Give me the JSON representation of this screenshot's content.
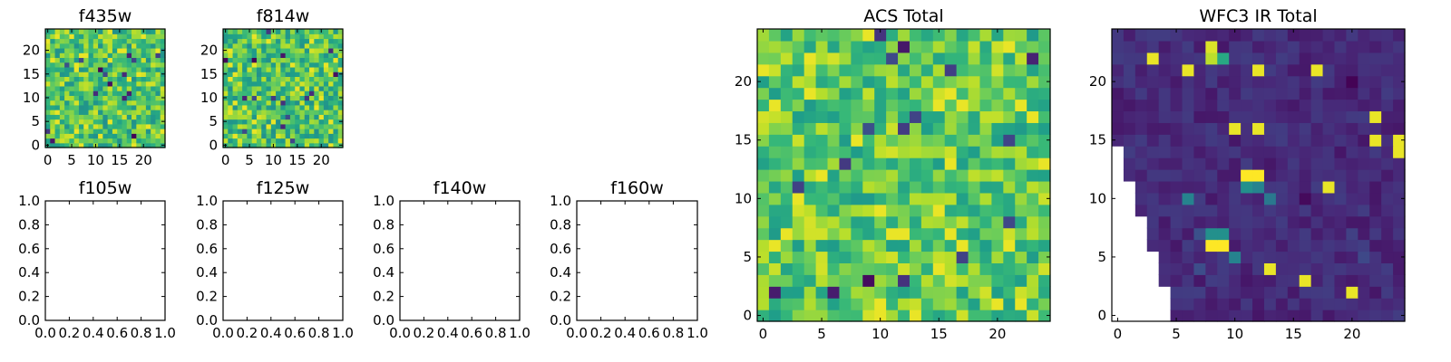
{
  "chart_data": [
    {
      "id": "f435w",
      "type": "heatmap",
      "title": "f435w",
      "grid_size": 25,
      "colormap": "viridis",
      "xlim": [
        -0.5,
        24.5
      ],
      "ylim": [
        -0.5,
        24.5
      ],
      "xticks": [
        0,
        5,
        10,
        15,
        20
      ],
      "yticks": [
        0,
        5,
        10,
        15,
        20
      ],
      "values": {
        "distribution": "noise",
        "mean": 0.72,
        "spread": 0.22,
        "seed": 11
      }
    },
    {
      "id": "f814w",
      "type": "heatmap",
      "title": "f814w",
      "grid_size": 25,
      "colormap": "viridis",
      "xlim": [
        -0.5,
        24.5
      ],
      "ylim": [
        -0.5,
        24.5
      ],
      "xticks": [
        0,
        5,
        10,
        15,
        20
      ],
      "yticks": [
        0,
        5,
        10,
        15,
        20
      ],
      "values": {
        "distribution": "noise",
        "mean": 0.72,
        "spread": 0.22,
        "seed": 23
      }
    },
    {
      "id": "f105w",
      "type": "heatmap",
      "title": "f105w",
      "empty": true,
      "xlim": [
        0,
        1
      ],
      "ylim": [
        0,
        1
      ],
      "xticks": [
        "0.0",
        "0.2",
        "0.4",
        "0.6",
        "0.8",
        "1.0"
      ],
      "yticks": [
        "0.0",
        "0.2",
        "0.4",
        "0.6",
        "0.8",
        "1.0"
      ]
    },
    {
      "id": "f125w",
      "type": "heatmap",
      "title": "f125w",
      "empty": true,
      "xlim": [
        0,
        1
      ],
      "ylim": [
        0,
        1
      ],
      "xticks": [
        "0.0",
        "0.2",
        "0.4",
        "0.6",
        "0.8",
        "1.0"
      ],
      "yticks": [
        "0.0",
        "0.2",
        "0.4",
        "0.6",
        "0.8",
        "1.0"
      ]
    },
    {
      "id": "f140w",
      "type": "heatmap",
      "title": "f140w",
      "empty": true,
      "xlim": [
        0,
        1
      ],
      "ylim": [
        0,
        1
      ],
      "xticks": [
        "0.0",
        "0.2",
        "0.4",
        "0.6",
        "0.8",
        "1.0"
      ],
      "yticks": [
        "0.0",
        "0.2",
        "0.4",
        "0.6",
        "0.8",
        "1.0"
      ]
    },
    {
      "id": "f160w",
      "type": "heatmap",
      "title": "f160w",
      "empty": true,
      "xlim": [
        0,
        1
      ],
      "ylim": [
        0,
        1
      ],
      "xticks": [
        "0.0",
        "0.2",
        "0.4",
        "0.6",
        "0.8",
        "1.0"
      ],
      "yticks": [
        "0.0",
        "0.2",
        "0.4",
        "0.6",
        "0.8",
        "1.0"
      ]
    },
    {
      "id": "acs-total",
      "type": "heatmap",
      "title": "ACS Total",
      "grid_size": 25,
      "colormap": "viridis",
      "xlim": [
        -0.5,
        24.5
      ],
      "ylim": [
        -0.5,
        24.5
      ],
      "xticks": [
        0,
        5,
        10,
        15,
        20
      ],
      "yticks": [
        0,
        5,
        10,
        15,
        20
      ],
      "values": {
        "distribution": "noise",
        "mean": 0.74,
        "spread": 0.2,
        "seed": 37
      }
    },
    {
      "id": "wfc3-ir-total",
      "type": "heatmap",
      "title": "WFC3 IR Total",
      "grid_size": 25,
      "colormap": "viridis",
      "xlim": [
        -0.5,
        24.5
      ],
      "ylim": [
        -0.5,
        24.5
      ],
      "xticks": [
        0,
        5,
        10,
        15,
        20
      ],
      "yticks": [
        0,
        5,
        10,
        15,
        20
      ],
      "values": {
        "distribution": "noise",
        "mean": 0.12,
        "spread": 0.06,
        "seed": 53
      },
      "missing_region": "lower-left staircase (white, no data)",
      "missing_edge_by_row": [
        5,
        5,
        5,
        4,
        4,
        4,
        3,
        3,
        3,
        2,
        2,
        2,
        1,
        1,
        1,
        0,
        0,
        0,
        0,
        0,
        0,
        0,
        0,
        0,
        0
      ],
      "hotspots": [
        {
          "x": 7.5,
          "y": 22.5,
          "value": 1.0
        },
        {
          "x": 8,
          "y": 23,
          "value": 0.95
        },
        {
          "x": 8,
          "y": 22,
          "value": 0.9
        },
        {
          "x": 9,
          "y": 22,
          "value": 0.6
        },
        {
          "x": 11,
          "y": 12,
          "value": 1.0
        },
        {
          "x": 12,
          "y": 12,
          "value": 1.0
        },
        {
          "x": 11,
          "y": 11,
          "value": 0.5
        },
        {
          "x": 12,
          "y": 11,
          "value": 0.45
        },
        {
          "x": 8,
          "y": 6,
          "value": 1.0
        },
        {
          "x": 9,
          "y": 6,
          "value": 1.0
        },
        {
          "x": 8,
          "y": 7,
          "value": 0.5
        },
        {
          "x": 9,
          "y": 7,
          "value": 0.5
        },
        {
          "x": 6,
          "y": 10,
          "value": 0.45
        },
        {
          "x": 10,
          "y": 5,
          "value": 0.45
        },
        {
          "x": 13,
          "y": 10,
          "value": 0.4
        }
      ]
    }
  ]
}
